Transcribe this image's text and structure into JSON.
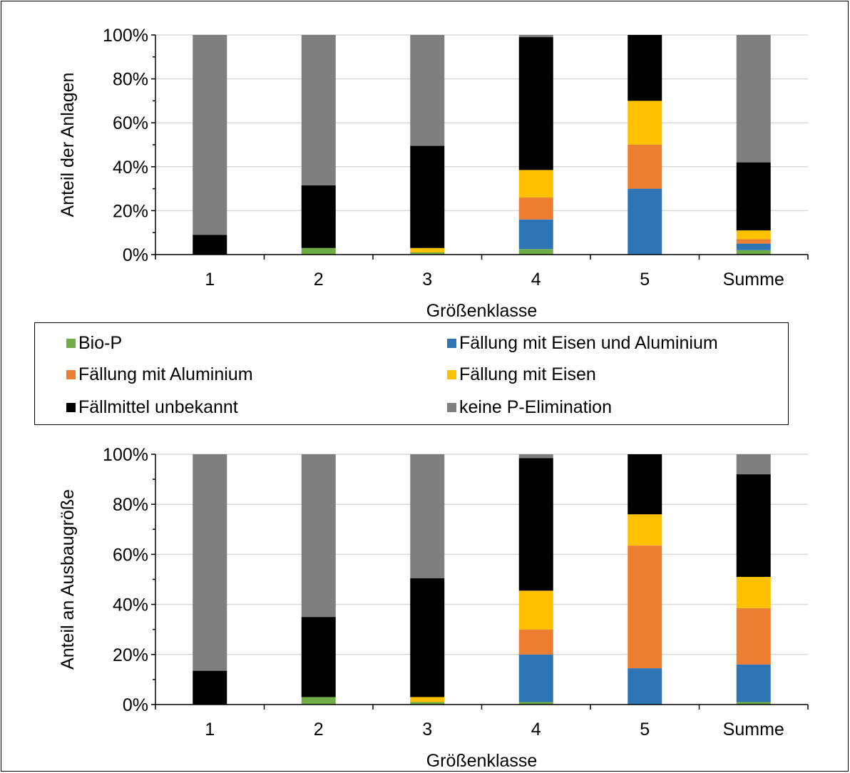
{
  "colors": {
    "Bio-P": "#70ad47",
    "Fällung mit Eisen und Aluminium": "#2e75b6",
    "Fällung mit Aluminium": "#ed7d31",
    "Fällung mit Eisen": "#ffc000",
    "Fällmittel unbekannt": "#000000",
    "keine P-Elimination": "#7f7f7f"
  },
  "legend": {
    "items": [
      "Bio-P",
      "Fällung mit Eisen und Aluminium",
      "Fällung mit Aluminium",
      "Fällung mit Eisen",
      "Fällmittel unbekannt",
      "keine P-Elimination"
    ]
  },
  "chart_data": [
    {
      "type": "bar",
      "stacked": true,
      "percent": true,
      "ylabel": "Anteil der Anlagen",
      "xlabel": "Größenklasse",
      "ylim": [
        0,
        100
      ],
      "yticks": [
        "0%",
        "20%",
        "40%",
        "60%",
        "80%",
        "100%"
      ],
      "grid": true,
      "categories": [
        "1",
        "2",
        "3",
        "4",
        "5",
        "Summe"
      ],
      "series": [
        {
          "name": "Bio-P",
          "values": [
            0,
            3,
            1,
            2.5,
            0,
            2
          ]
        },
        {
          "name": "Fällung mit Eisen und Aluminium",
          "values": [
            0,
            0,
            0,
            13.5,
            30,
            3
          ]
        },
        {
          "name": "Fällung mit Aluminium",
          "values": [
            0,
            0,
            0,
            10,
            20,
            2
          ]
        },
        {
          "name": "Fällung mit Eisen",
          "values": [
            0,
            0,
            2,
            12.5,
            20,
            4
          ]
        },
        {
          "name": "Fällmittel unbekannt",
          "values": [
            9,
            28.5,
            46.5,
            60.5,
            30,
            31
          ]
        },
        {
          "name": "keine P-Elimination",
          "values": [
            91,
            68.5,
            50.5,
            1,
            0,
            58
          ]
        }
      ]
    },
    {
      "type": "bar",
      "stacked": true,
      "percent": true,
      "ylabel": "Anteil an Ausbaugröße",
      "xlabel": "Größenklasse",
      "ylim": [
        0,
        100
      ],
      "yticks": [
        "0%",
        "20%",
        "40%",
        "60%",
        "80%",
        "100%"
      ],
      "grid": true,
      "categories": [
        "1",
        "2",
        "3",
        "4",
        "5",
        "Summe"
      ],
      "series": [
        {
          "name": "Bio-P",
          "values": [
            0,
            3,
            1,
            1,
            0,
            1
          ]
        },
        {
          "name": "Fällung mit Eisen und Aluminium",
          "values": [
            0,
            0,
            0,
            19,
            14.5,
            15
          ]
        },
        {
          "name": "Fällung mit Aluminium",
          "values": [
            0,
            0,
            0,
            10,
            49,
            22.5
          ]
        },
        {
          "name": "Fällung mit Eisen",
          "values": [
            0,
            0,
            2,
            15.5,
            12.5,
            12.5
          ]
        },
        {
          "name": "Fällmittel unbekannt",
          "values": [
            13.5,
            32,
            47.5,
            53,
            24,
            41
          ]
        },
        {
          "name": "keine P-Elimination",
          "values": [
            86.5,
            65,
            49.5,
            1.5,
            0,
            8
          ]
        }
      ]
    }
  ]
}
